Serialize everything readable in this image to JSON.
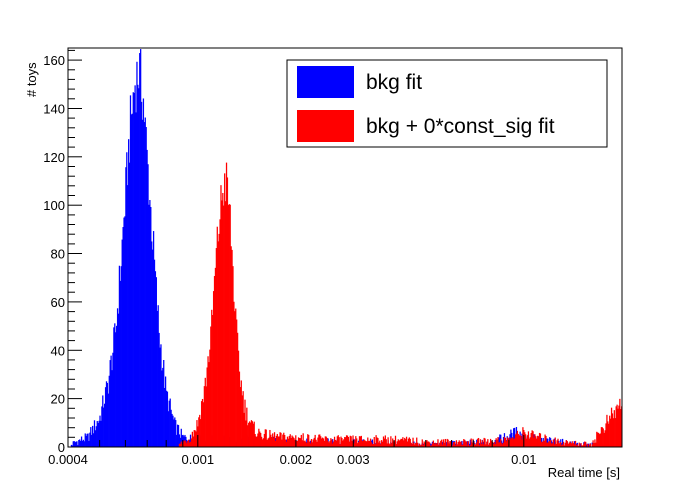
{
  "chart_data": {
    "type": "bar",
    "subtype": "overlaid histogram",
    "xscale": "log",
    "xlim": [
      0.0004,
      0.02
    ],
    "ylim": [
      0,
      165
    ],
    "xlabel": "Real time [s]",
    "ylabel": "# toys",
    "yticks": [
      0,
      20,
      40,
      60,
      80,
      100,
      120,
      140,
      160
    ],
    "xtick_labels": [
      {
        "value": 0.0004,
        "label": "0.0004"
      },
      {
        "value": 0.001,
        "label": "0.001"
      },
      {
        "value": 0.002,
        "label": "0.002"
      },
      {
        "value": 0.003,
        "label": "0.003"
      },
      {
        "value": 0.01,
        "label": "0.01"
      }
    ],
    "legend_position": "top-right",
    "grid": false,
    "series": [
      {
        "name": "bkg fit",
        "color": "#0000ff",
        "x": [
          0.00042,
          0.00046,
          0.0005,
          0.00053,
          0.00056,
          0.00058,
          0.0006,
          0.00062,
          0.00064,
          0.00066,
          0.00068,
          0.0007,
          0.00073,
          0.00076,
          0.0008,
          0.00085,
          0.0009,
          0.001,
          0.0012,
          0.0015,
          0.002,
          0.003,
          0.005,
          0.008,
          0.0095,
          0.011,
          0.015,
          0.02
        ],
        "values": [
          2,
          4,
          12,
          26,
          48,
          75,
          104,
          132,
          150,
          156,
          144,
          118,
          82,
          48,
          22,
          9,
          4,
          3,
          3,
          3,
          2,
          2,
          1,
          2,
          6,
          3,
          1,
          0
        ]
      },
      {
        "name": "bkg + 0*const_sig fit",
        "color": "#ff0000",
        "x": [
          0.0009,
          0.00095,
          0.001,
          0.00105,
          0.0011,
          0.00113,
          0.00116,
          0.00119,
          0.00122,
          0.00125,
          0.00128,
          0.00131,
          0.00135,
          0.0014,
          0.00146,
          0.00152,
          0.0016,
          0.0018,
          0.002,
          0.0025,
          0.003,
          0.004,
          0.005,
          0.007,
          0.009,
          0.01,
          0.011,
          0.013,
          0.016,
          0.0199
        ],
        "values": [
          2,
          4,
          10,
          24,
          48,
          72,
          92,
          106,
          110,
          98,
          74,
          48,
          28,
          15,
          9,
          6,
          5,
          4,
          4,
          3,
          3,
          3,
          2,
          2,
          3,
          6,
          4,
          2,
          1,
          18
        ]
      }
    ]
  }
}
